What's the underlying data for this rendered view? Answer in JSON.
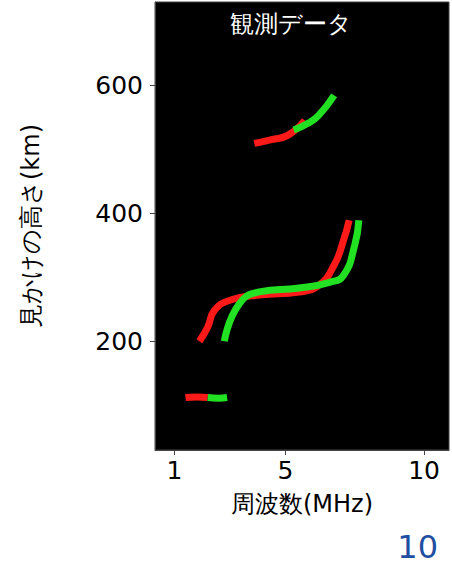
{
  "chart_data": {
    "type": "line",
    "annotation": "観測データ",
    "page_number": "10",
    "x_label": "周波数(MHz)",
    "y_label": "見かけの高さ(km)",
    "xlim": [
      0.3,
      10.9
    ],
    "xticks": [
      1,
      5,
      10
    ],
    "ylim": [
      30,
      730
    ],
    "yticks": [
      200,
      400,
      600
    ],
    "grid": false,
    "series": [
      {
        "color": "#ff1a1a",
        "x": [
          1.4,
          1.8,
          2.2
        ],
        "values": [
          112,
          113,
          112
        ]
      },
      {
        "color": "#22e022",
        "x": [
          2.2,
          2.6,
          2.9
        ],
        "values": [
          112,
          111,
          112
        ]
      },
      {
        "color": "#ff1a1a",
        "x": [
          1.9,
          2.2,
          2.44,
          3.0,
          4.06,
          5.5,
          6.2,
          6.76,
          7.1,
          7.3
        ],
        "values": [
          200,
          222,
          248,
          264,
          272,
          277,
          287,
          319,
          358,
          389
        ]
      },
      {
        "color": "#22e022",
        "x": [
          2.8,
          3.3,
          4.06,
          5.5,
          6.6,
          7.1,
          7.5,
          7.65
        ],
        "values": [
          200,
          256,
          277,
          283,
          292,
          303,
          350,
          389
        ]
      },
      {
        "color": "#ff1a1a",
        "x": [
          3.88,
          4.5,
          5.1,
          5.7
        ],
        "values": [
          509,
          515,
          522,
          545
        ]
      },
      {
        "color": "#22e022",
        "x": [
          5.3,
          5.8,
          6.2,
          6.76
        ],
        "values": [
          530,
          540,
          553,
          584
        ]
      }
    ]
  }
}
